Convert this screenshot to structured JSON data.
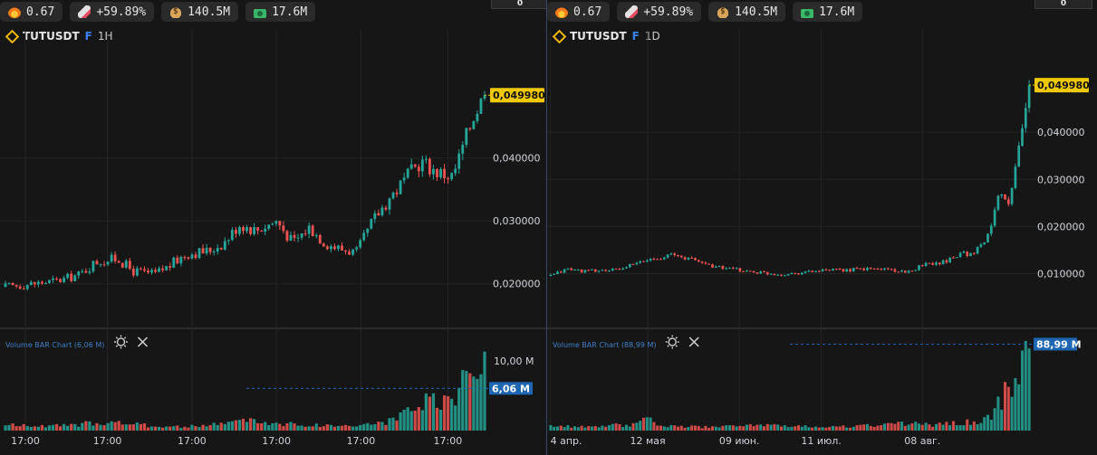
{
  "stats": [
    {
      "icon": "fire-icon",
      "value": "0.67"
    },
    {
      "icon": "rocket-icon",
      "value": "+59.89%"
    },
    {
      "icon": "moneybag-icon",
      "value": "140.5M"
    },
    {
      "icon": "cash-icon",
      "value": "17.6M"
    }
  ],
  "toggle_value": "0",
  "colors": {
    "up": "#26a69a",
    "down": "#ef5350",
    "price_tag": "#f0c800",
    "vol_tag": "#1e66b4"
  },
  "chart_data": [
    {
      "type": "candlestick",
      "symbol": "TUTUSDT",
      "market_flag": "F",
      "timeframe": "1H",
      "y_ticks": [
        "0,020000",
        "0,030000",
        "0,040000"
      ],
      "y_tick_values": [
        0.02,
        0.03,
        0.04
      ],
      "ylim": [
        0.0145,
        0.0572
      ],
      "last_price": 0.04998,
      "last_price_label": "0,049980",
      "x_ticks": [
        "17:00",
        "17:00",
        "17:00",
        "17:00",
        "17:00",
        "17:00"
      ],
      "x_tick_positions": [
        0.045,
        0.215,
        0.39,
        0.565,
        0.74,
        0.92
      ],
      "price_path": [
        [
          0.0,
          0.0195
        ],
        [
          0.05,
          0.02
        ],
        [
          0.1,
          0.0205
        ],
        [
          0.14,
          0.0215
        ],
        [
          0.17,
          0.0235
        ],
        [
          0.21,
          0.024
        ],
        [
          0.24,
          0.022
        ],
        [
          0.28,
          0.0215
        ],
        [
          0.31,
          0.023
        ],
        [
          0.34,
          0.0248
        ],
        [
          0.38,
          0.0252
        ],
        [
          0.41,
          0.0265
        ],
        [
          0.44,
          0.0295
        ],
        [
          0.47,
          0.0285
        ],
        [
          0.51,
          0.03
        ],
        [
          0.54,
          0.0265
        ],
        [
          0.57,
          0.029
        ],
        [
          0.6,
          0.0265
        ],
        [
          0.63,
          0.0255
        ],
        [
          0.66,
          0.025
        ],
        [
          0.69,
          0.03
        ],
        [
          0.72,
          0.0335
        ],
        [
          0.75,
          0.0365
        ],
        [
          0.78,
          0.0395
        ],
        [
          0.81,
          0.0378
        ],
        [
          0.84,
          0.037
        ],
        [
          0.86,
          0.042
        ],
        [
          0.88,
          0.047
        ],
        [
          0.9,
          0.04998
        ]
      ],
      "volume": {
        "title": "Volume BAR Chart (6,06 M)",
        "ticks": [
          "10,00 M"
        ],
        "tick_values": [
          10.0
        ],
        "ymax": 13.5,
        "current": 6.06,
        "current_label": "6,06 M",
        "profile": [
          [
            0.0,
            0.9
          ],
          [
            0.08,
            0.7
          ],
          [
            0.14,
            0.9
          ],
          [
            0.17,
            1.4
          ],
          [
            0.22,
            1.2
          ],
          [
            0.28,
            0.7
          ],
          [
            0.34,
            0.6
          ],
          [
            0.4,
            1.0
          ],
          [
            0.44,
            1.7
          ],
          [
            0.5,
            1.2
          ],
          [
            0.56,
            0.9
          ],
          [
            0.62,
            0.8
          ],
          [
            0.66,
            0.8
          ],
          [
            0.7,
            1.2
          ],
          [
            0.73,
            1.6
          ],
          [
            0.77,
            3.4
          ],
          [
            0.8,
            4.8
          ],
          [
            0.83,
            4.0
          ],
          [
            0.85,
            5.3
          ],
          [
            0.87,
            11.8
          ],
          [
            0.89,
            12.8
          ],
          [
            0.9,
            13.0
          ]
        ]
      }
    },
    {
      "type": "candlestick",
      "symbol": "TUTUSDT",
      "market_flag": "F",
      "timeframe": "1D",
      "y_ticks": [
        "0,010000",
        "0,020000",
        "0,030000",
        "0,040000"
      ],
      "y_tick_values": [
        0.01,
        0.02,
        0.03,
        0.04
      ],
      "ylim": [
        0.0005,
        0.0575
      ],
      "last_price": 0.04998,
      "last_price_label": "0,049980",
      "x_ticks": [
        "4 апр.",
        "12 мая",
        "09 июн.",
        "11 июл.",
        "08 авг."
      ],
      "x_tick_positions": [
        0.003,
        0.205,
        0.395,
        0.565,
        0.775
      ],
      "price_path": [
        [
          0.0,
          0.0095
        ],
        [
          0.03,
          0.011
        ],
        [
          0.06,
          0.0105
        ],
        [
          0.12,
          0.0108
        ],
        [
          0.18,
          0.013
        ],
        [
          0.22,
          0.014
        ],
        [
          0.26,
          0.013
        ],
        [
          0.3,
          0.0115
        ],
        [
          0.36,
          0.0105
        ],
        [
          0.42,
          0.0098
        ],
        [
          0.48,
          0.0105
        ],
        [
          0.54,
          0.0108
        ],
        [
          0.58,
          0.011
        ],
        [
          0.62,
          0.011
        ],
        [
          0.65,
          0.01
        ],
        [
          0.68,
          0.012
        ],
        [
          0.72,
          0.0125
        ],
        [
          0.75,
          0.0145
        ],
        [
          0.77,
          0.014
        ],
        [
          0.8,
          0.018
        ],
        [
          0.82,
          0.028
        ],
        [
          0.84,
          0.025
        ],
        [
          0.86,
          0.04
        ],
        [
          0.875,
          0.04998
        ]
      ],
      "volume": {
        "title": "Volume BAR Chart (88,99 M)",
        "ticks": [],
        "tick_values": [],
        "ymax": 95.0,
        "current": 88.99,
        "current_label": "88,99 M",
        "profile": [
          [
            0.0,
            6
          ],
          [
            0.05,
            4
          ],
          [
            0.15,
            7
          ],
          [
            0.18,
            18
          ],
          [
            0.2,
            5
          ],
          [
            0.3,
            4
          ],
          [
            0.4,
            6
          ],
          [
            0.5,
            4
          ],
          [
            0.6,
            6
          ],
          [
            0.65,
            8
          ],
          [
            0.7,
            6
          ],
          [
            0.75,
            10
          ],
          [
            0.78,
            8
          ],
          [
            0.8,
            15
          ],
          [
            0.82,
            30
          ],
          [
            0.84,
            52
          ],
          [
            0.86,
            75
          ],
          [
            0.875,
            89
          ]
        ]
      }
    }
  ]
}
